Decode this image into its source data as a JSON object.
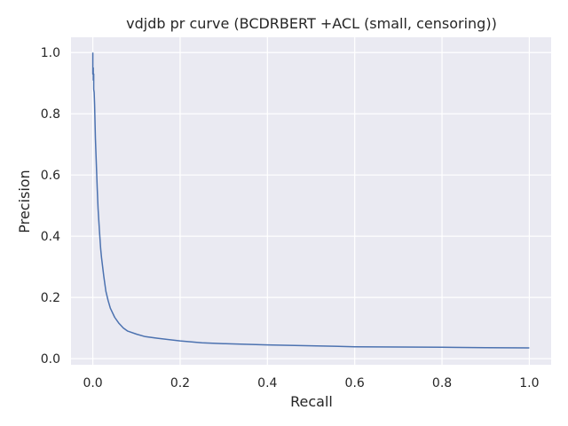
{
  "chart_data": {
    "type": "line",
    "title": "vdjdb pr curve (BCDRBERT +ACL (small, censoring))",
    "xlabel": "Recall",
    "ylabel": "Precision",
    "xlim": [
      -0.05,
      1.05
    ],
    "ylim": [
      -0.02,
      1.05
    ],
    "xticks": [
      0.0,
      0.2,
      0.4,
      0.6,
      0.8,
      1.0
    ],
    "xtick_labels": [
      "0.0",
      "0.2",
      "0.4",
      "0.6",
      "0.8",
      "1.0"
    ],
    "yticks": [
      0.0,
      0.2,
      0.4,
      0.6,
      0.8,
      1.0
    ],
    "ytick_labels": [
      "0.0",
      "0.2",
      "0.4",
      "0.6",
      "0.8",
      "1.0"
    ],
    "grid": true,
    "background": "#eaeaf2",
    "grid_color": "#ffffff",
    "series": [
      {
        "color": "#4c72b0",
        "x": [
          0.0,
          0.0,
          0.001,
          0.001,
          0.002,
          0.002,
          0.003,
          0.004,
          0.005,
          0.006,
          0.008,
          0.01,
          0.012,
          0.015,
          0.018,
          0.02,
          0.025,
          0.03,
          0.035,
          0.04,
          0.05,
          0.06,
          0.07,
          0.08,
          0.1,
          0.12,
          0.15,
          0.2,
          0.25,
          0.3,
          0.4,
          0.5,
          0.6,
          0.7,
          0.8,
          0.9,
          1.0
        ],
        "y": [
          1.0,
          0.93,
          0.95,
          0.91,
          0.93,
          0.88,
          0.87,
          0.83,
          0.78,
          0.72,
          0.64,
          0.56,
          0.49,
          0.42,
          0.36,
          0.33,
          0.27,
          0.22,
          0.19,
          0.165,
          0.135,
          0.115,
          0.1,
          0.09,
          0.08,
          0.072,
          0.066,
          0.058,
          0.052,
          0.049,
          0.045,
          0.042,
          0.039,
          0.038,
          0.037,
          0.036,
          0.035
        ]
      }
    ]
  }
}
